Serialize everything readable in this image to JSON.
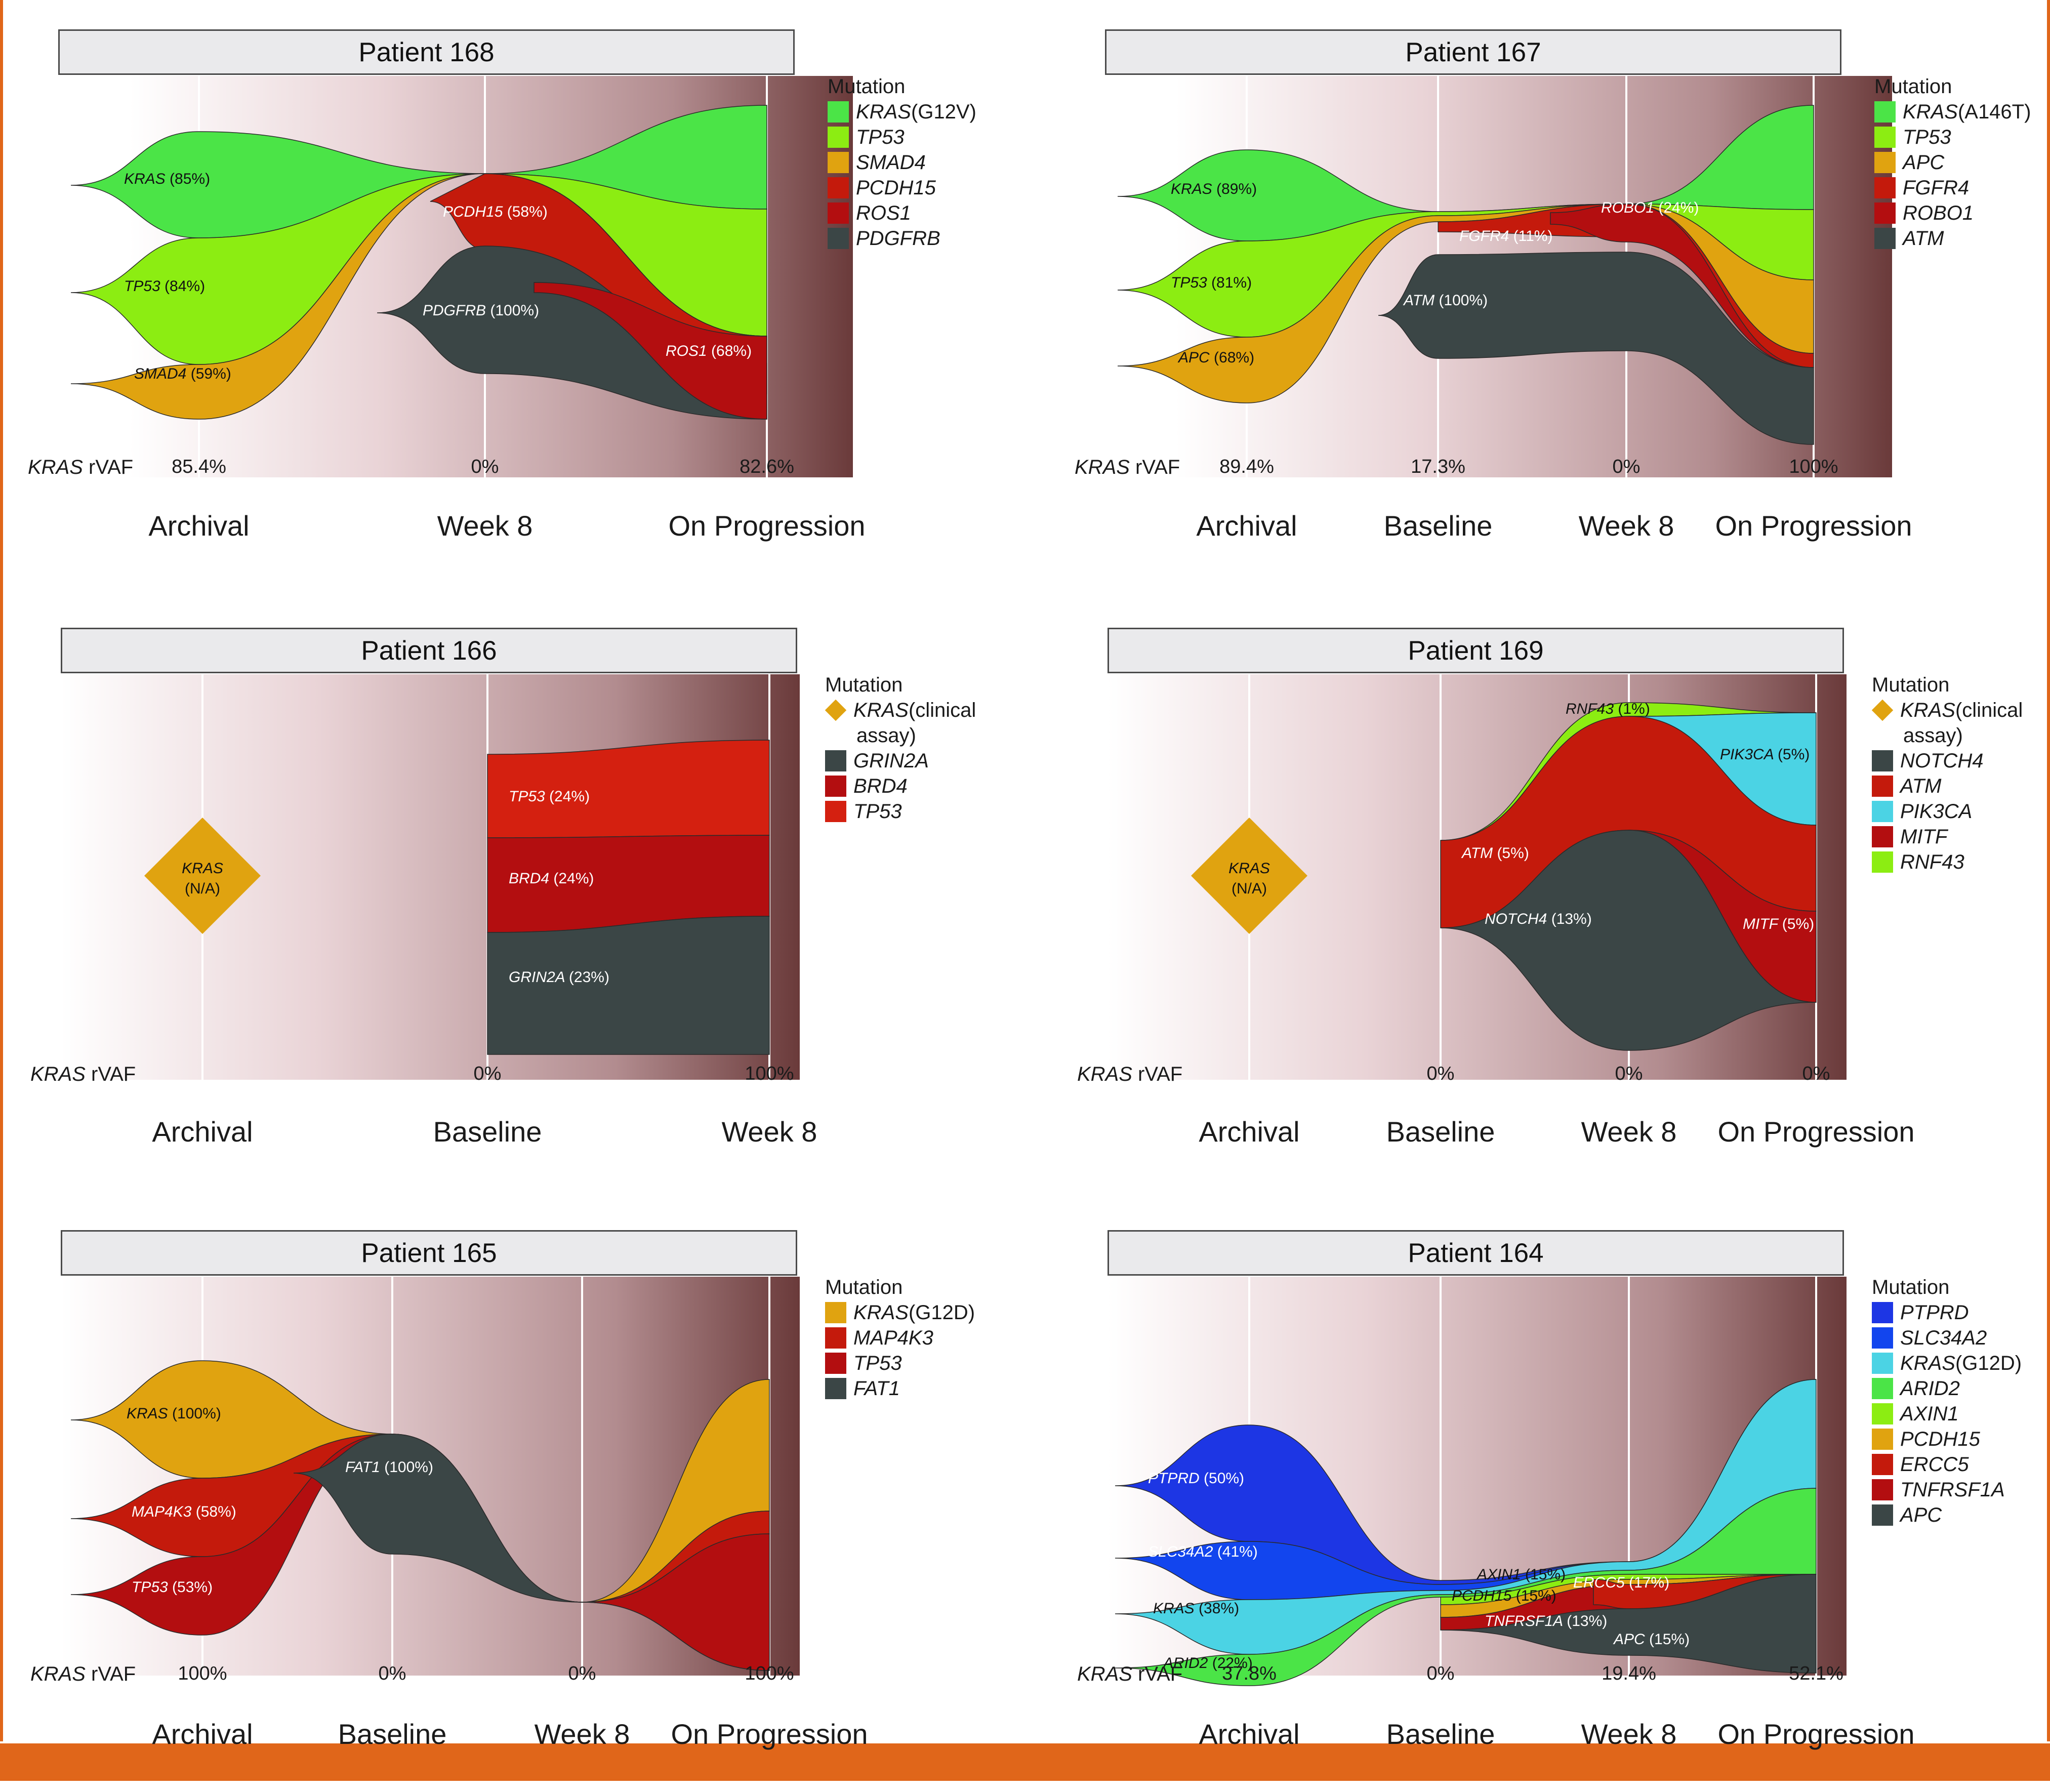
{
  "colors": {
    "kras_green": "#4be447",
    "lime": "#8ced12",
    "orange": "#e0a310",
    "red1": "#c41a0c",
    "red2": "#b30e10",
    "red3": "#d42010",
    "dark": "#3b4646",
    "cyan": "#4bd3e4",
    "blue": "#1d36e4",
    "blue2": "#1245ee",
    "frame": "#e0661a"
  },
  "chart_data": [
    {
      "type": "area",
      "title": "Patient 168",
      "timepoints": [
        "Archival",
        "Week 8",
        "On Progression"
      ],
      "rvaf_label_gene": "KRAS",
      "rvaf_label_suffix": "rVAF",
      "rvaf": [
        "85.4%",
        "0%",
        "82.6%"
      ],
      "legend_title": "Mutation",
      "legend": [
        {
          "gene": "KRAS",
          "note": "(G12V)",
          "color": "#4be447"
        },
        {
          "gene": "TP53",
          "note": "",
          "color": "#8ced12"
        },
        {
          "gene": "SMAD4",
          "note": "",
          "color": "#e0a310"
        },
        {
          "gene": "PCDH15",
          "note": "",
          "color": "#c41a0c"
        },
        {
          "gene": "ROS1",
          "note": "",
          "color": "#b30e10"
        },
        {
          "gene": "PDGFRB",
          "note": "",
          "color": "#3b4646"
        }
      ],
      "annotations": [
        {
          "gene": "KRAS",
          "value": "(85%)",
          "dark": true
        },
        {
          "gene": "TP53",
          "value": "(84%)",
          "dark": true
        },
        {
          "gene": "SMAD4",
          "value": "(59%)",
          "dark": true
        },
        {
          "gene": "PCDH15",
          "value": "(58%)",
          "dark": false
        },
        {
          "gene": "PDGFRB",
          "value": "(100%)",
          "dark": false
        },
        {
          "gene": "ROS1",
          "value": "(68%)",
          "dark": false
        }
      ]
    },
    {
      "type": "area",
      "title": "Patient 167",
      "timepoints": [
        "Archival",
        "Baseline",
        "Week 8",
        "On Progression"
      ],
      "rvaf_label_gene": "KRAS",
      "rvaf_label_suffix": "rVAF",
      "rvaf": [
        "89.4%",
        "17.3%",
        "0%",
        "100%"
      ],
      "legend_title": "Mutation",
      "legend": [
        {
          "gene": "KRAS",
          "note": "(A146T)",
          "color": "#4be447"
        },
        {
          "gene": "TP53",
          "note": "",
          "color": "#8ced12"
        },
        {
          "gene": "APC",
          "note": "",
          "color": "#e0a310"
        },
        {
          "gene": "FGFR4",
          "note": "",
          "color": "#c41a0c"
        },
        {
          "gene": "ROBO1",
          "note": "",
          "color": "#b30e10"
        },
        {
          "gene": "ATM",
          "note": "",
          "color": "#3b4646"
        }
      ],
      "annotations": [
        {
          "gene": "KRAS",
          "value": "(89%)",
          "dark": true
        },
        {
          "gene": "TP53",
          "value": "(81%)",
          "dark": true
        },
        {
          "gene": "APC",
          "value": "(68%)",
          "dark": true
        },
        {
          "gene": "ROBO1",
          "value": "(24%)",
          "dark": false
        },
        {
          "gene": "FGFR4",
          "value": "(11%)",
          "dark": false
        },
        {
          "gene": "ATM",
          "value": "(100%)",
          "dark": false
        }
      ]
    },
    {
      "type": "area",
      "title": "Patient 166",
      "timepoints": [
        "Archival",
        "Baseline",
        "Week 8"
      ],
      "rvaf_label_gene": "KRAS",
      "rvaf_label_suffix": "rVAF",
      "rvaf": [
        "",
        "0%",
        "100%"
      ],
      "legend_title": "Mutation",
      "legend": [
        {
          "gene": "KRAS",
          "note": "(clinical",
          "note2": "assay)",
          "color": "#e0a310",
          "diamond": true
        },
        {
          "gene": "GRIN2A",
          "note": "",
          "color": "#3b4646"
        },
        {
          "gene": "BRD4",
          "note": "",
          "color": "#b30e10"
        },
        {
          "gene": "TP53",
          "note": "",
          "color": "#d42010"
        }
      ],
      "diamond": {
        "gene": "KRAS",
        "value": "(N/A)"
      },
      "annotations": [
        {
          "gene": "TP53",
          "value": "(24%)",
          "dark": false
        },
        {
          "gene": "BRD4",
          "value": "(24%)",
          "dark": false
        },
        {
          "gene": "GRIN2A",
          "value": "(23%)",
          "dark": false
        }
      ]
    },
    {
      "type": "area",
      "title": "Patient 169",
      "timepoints": [
        "Archival",
        "Baseline",
        "Week 8",
        "On Progression"
      ],
      "rvaf_label_gene": "KRAS",
      "rvaf_label_suffix": "rVAF",
      "rvaf": [
        "",
        "0%",
        "0%",
        "0%"
      ],
      "legend_title": "Mutation",
      "legend": [
        {
          "gene": "KRAS",
          "note": "(clinical",
          "note2": "assay)",
          "color": "#e0a310",
          "diamond": true
        },
        {
          "gene": "NOTCH4",
          "note": "",
          "color": "#3b4646"
        },
        {
          "gene": "ATM",
          "note": "",
          "color": "#c41a0c"
        },
        {
          "gene": "PIK3CA",
          "note": "",
          "color": "#4bd3e4"
        },
        {
          "gene": "MITF",
          "note": "",
          "color": "#b30e10"
        },
        {
          "gene": "RNF43",
          "note": "",
          "color": "#8ced12"
        }
      ],
      "diamond": {
        "gene": "KRAS",
        "value": "(N/A)"
      },
      "annotations": [
        {
          "gene": "RNF43",
          "value": "(1%)",
          "dark": true
        },
        {
          "gene": "PIK3CA",
          "value": "(5%)",
          "dark": true
        },
        {
          "gene": "ATM",
          "value": "(5%)",
          "dark": false
        },
        {
          "gene": "NOTCH4",
          "value": "(13%)",
          "dark": false
        },
        {
          "gene": "MITF",
          "value": "(5%)",
          "dark": false
        }
      ]
    },
    {
      "type": "area",
      "title": "Patient 165",
      "timepoints": [
        "Archival",
        "Baseline",
        "Week 8",
        "On Progression"
      ],
      "rvaf_label_gene": "KRAS",
      "rvaf_label_suffix": "rVAF",
      "rvaf": [
        "100%",
        "0%",
        "0%",
        "100%"
      ],
      "legend_title": "Mutation",
      "legend": [
        {
          "gene": "KRAS",
          "note": "(G12D)",
          "color": "#e0a310"
        },
        {
          "gene": "MAP4K3",
          "note": "",
          "color": "#c41a0c"
        },
        {
          "gene": "TP53",
          "note": "",
          "color": "#b30e10"
        },
        {
          "gene": "FAT1",
          "note": "",
          "color": "#3b4646"
        }
      ],
      "annotations": [
        {
          "gene": "KRAS",
          "value": "(100%)",
          "dark": true
        },
        {
          "gene": "MAP4K3",
          "value": "(58%)",
          "dark": false
        },
        {
          "gene": "TP53",
          "value": "(53%)",
          "dark": false
        },
        {
          "gene": "FAT1",
          "value": "(100%)",
          "dark": false
        }
      ]
    },
    {
      "type": "area",
      "title": "Patient 164",
      "timepoints": [
        "Archival",
        "Baseline",
        "Week 8",
        "On Progression"
      ],
      "rvaf_label_gene": "KRAS",
      "rvaf_label_suffix": "rVAF",
      "rvaf": [
        "37.8%",
        "0%",
        "19.4%",
        "52.1%"
      ],
      "legend_title": "Mutation",
      "legend": [
        {
          "gene": "PTPRD",
          "note": "",
          "color": "#1d36e4"
        },
        {
          "gene": "SLC34A2",
          "note": "",
          "color": "#1245ee"
        },
        {
          "gene": "KRAS",
          "note": "(G12D)",
          "color": "#4bd3e4"
        },
        {
          "gene": "ARID2",
          "note": "",
          "color": "#4be447"
        },
        {
          "gene": "AXIN1",
          "note": "",
          "color": "#8ced12"
        },
        {
          "gene": "PCDH15",
          "note": "",
          "color": "#e0a310"
        },
        {
          "gene": "ERCC5",
          "note": "",
          "color": "#c41a0c"
        },
        {
          "gene": "TNFRSF1A",
          "note": "",
          "color": "#b30e10"
        },
        {
          "gene": "APC",
          "note": "",
          "color": "#3b4646"
        }
      ],
      "annotations": [
        {
          "gene": "PTPRD",
          "value": "(50%)",
          "dark": false
        },
        {
          "gene": "SLC34A2",
          "value": "(41%)",
          "dark": false
        },
        {
          "gene": "KRAS",
          "value": "(38%)",
          "dark": true
        },
        {
          "gene": "ARID2",
          "value": "(22%)",
          "dark": true
        },
        {
          "gene": "AXIN1",
          "value": "(15%)",
          "dark": true
        },
        {
          "gene": "PCDH15",
          "value": "(15%)",
          "dark": true
        },
        {
          "gene": "TNFRSF1A",
          "value": "(13%)",
          "dark": false
        },
        {
          "gene": "ERCC5",
          "value": "(17%)",
          "dark": false
        },
        {
          "gene": "APC",
          "value": "(15%)",
          "dark": false
        }
      ]
    }
  ]
}
